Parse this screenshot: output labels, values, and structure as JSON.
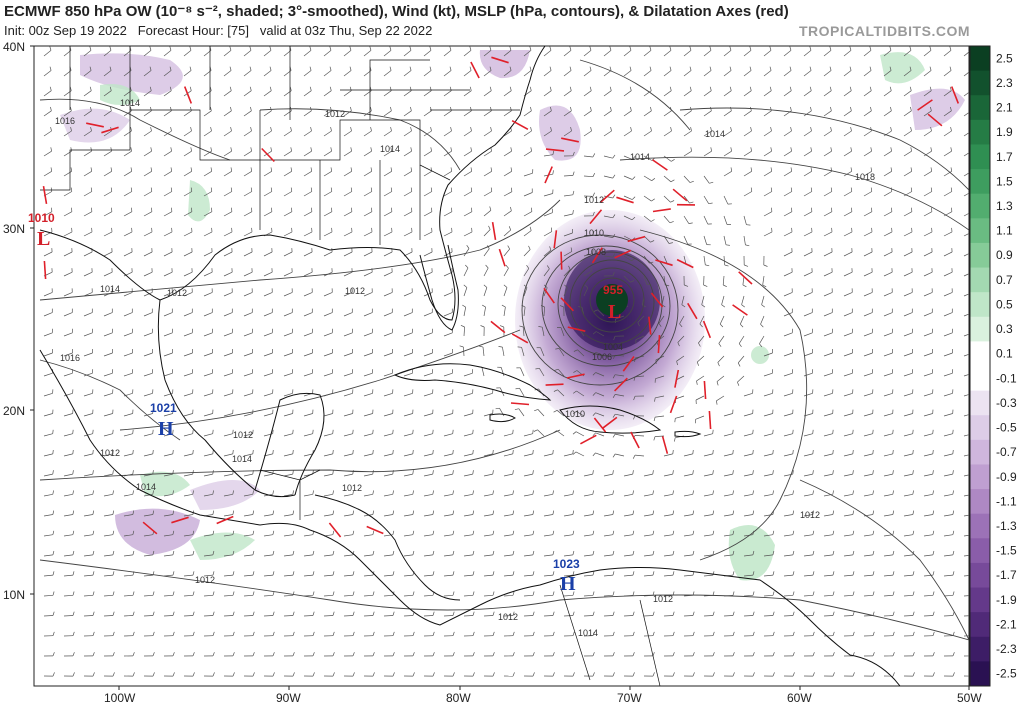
{
  "header": {
    "title_html": "ECMWF 850 hPa OW (10⁻⁸ s⁻², shaded; 3°-smoothed), Wind (kt), MSLP (hPa, contours), & Dilatation Axes (red)",
    "init": "Init: 00z Sep 19 2022",
    "forecast_hour": "Forecast Hour: [75]",
    "valid": "valid at 03z Thu, Sep 22 2022",
    "brand": "TROPICALTIDBITS.COM"
  },
  "axes": {
    "lat_labels": [
      "40N",
      "30N",
      "20N",
      "10N"
    ],
    "lon_labels": [
      "100W",
      "90W",
      "80W",
      "70W",
      "60W",
      "50W"
    ]
  },
  "colorbar": {
    "labels": [
      "2.5",
      "2.3",
      "2.1",
      "1.9",
      "1.7",
      "1.5",
      "1.3",
      "1.1",
      "0.9",
      "0.7",
      "0.5",
      "0.3",
      "0.1",
      "-0.1",
      "-0.3",
      "-0.5",
      "-0.7",
      "-0.9",
      "-1.1",
      "-1.3",
      "-1.5",
      "-1.7",
      "-1.9",
      "-2.1",
      "-2.3",
      "-2.5"
    ],
    "colors": [
      "#0b3f22",
      "#12512d",
      "#1a6638",
      "#257c45",
      "#2f8f52",
      "#3e9d5f",
      "#52ad6f",
      "#6abc82",
      "#86cb98",
      "#a3d9b1",
      "#bfe6c8",
      "#daf1de",
      "#ffffff",
      "#ffffff",
      "#ece3f1",
      "#ddcde7",
      "#cfb6dd",
      "#bf9fd1",
      "#ae88c4",
      "#9c72b7",
      "#8a5da9",
      "#774a9a",
      "#64398a",
      "#502a78",
      "#3d1d66",
      "#2a1152"
    ]
  },
  "systems": [
    {
      "type": "L",
      "pressure": "955",
      "color": "#d3202a"
    },
    {
      "type": "L",
      "pressure": "1010",
      "color": "#d3202a"
    },
    {
      "type": "H",
      "pressure": "1021",
      "color": "#1a3fa8"
    },
    {
      "type": "H",
      "pressure": "1023",
      "color": "#1a3fa8"
    }
  ],
  "pressure_labels": [
    "1014",
    "1016",
    "1012",
    "1014",
    "1014",
    "1014",
    "1012",
    "1014",
    "1016",
    "1012",
    "1014",
    "1012",
    "1014",
    "1012",
    "1012",
    "1012",
    "1018",
    "1012",
    "1010",
    "1008",
    "1006",
    "1004",
    "1010",
    "1012",
    "1012",
    "1014",
    "1012"
  ],
  "colors": {
    "shade_purple": "#a47bc4",
    "shade_green": "#9fd6a9",
    "dilatation": "#e0202a",
    "land": "#111111"
  }
}
